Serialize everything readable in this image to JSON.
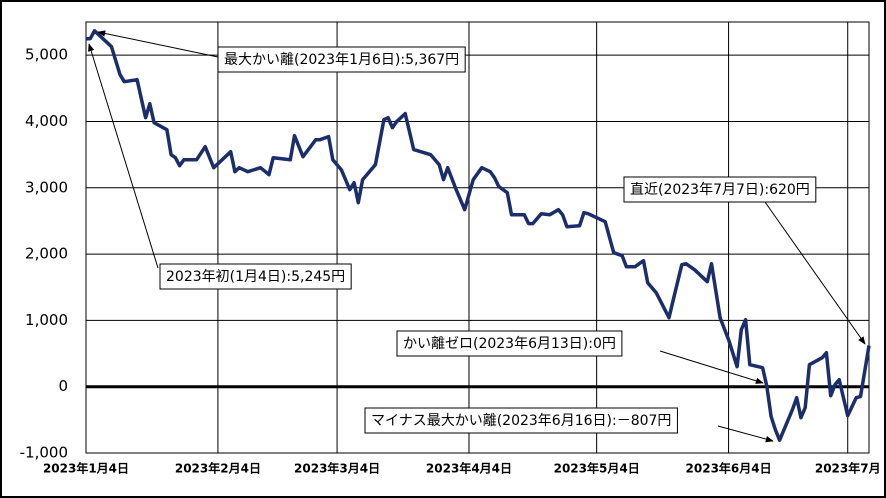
{
  "chart_data": {
    "type": "line",
    "color": "#1b2d6b",
    "grid": true,
    "zero_line": true,
    "xlim": [
      "2023-01-04",
      "2023-07-07"
    ],
    "ylim": [
      -1000,
      5500
    ],
    "xticks": [
      {
        "value": "2023-01-04",
        "label": "2023年1月4日"
      },
      {
        "value": "2023-02-04",
        "label": "2023年2月4日"
      },
      {
        "value": "2023-03-04",
        "label": "2023年3月4日"
      },
      {
        "value": "2023-04-04",
        "label": "2023年4月4日"
      },
      {
        "value": "2023-05-04",
        "label": "2023年5月4日"
      },
      {
        "value": "2023-06-04",
        "label": "2023年6月4日"
      },
      {
        "value": "2023-07-02",
        "label": "2023年7月"
      }
    ],
    "yticks": [
      {
        "value": -1000,
        "label": "-1,000"
      },
      0,
      {
        "value": 1000,
        "label": "1,000"
      },
      {
        "value": 2000,
        "label": "2,000"
      },
      {
        "value": 3000,
        "label": "3,000"
      },
      {
        "value": 4000,
        "label": "4,000"
      },
      {
        "value": 5000,
        "label": "5,000"
      }
    ],
    "x": [
      "2023-01-04",
      "2023-01-05",
      "2023-01-06",
      "2023-01-10",
      "2023-01-12",
      "2023-01-13",
      "2023-01-16",
      "2023-01-18",
      "2023-01-19",
      "2023-01-20",
      "2023-01-23",
      "2023-01-24",
      "2023-01-25",
      "2023-01-26",
      "2023-01-27",
      "2023-01-30",
      "2023-02-01",
      "2023-02-03",
      "2023-02-05",
      "2023-02-07",
      "2023-02-08",
      "2023-02-09",
      "2023-02-11",
      "2023-02-14",
      "2023-02-16",
      "2023-02-17",
      "2023-02-21",
      "2023-02-22",
      "2023-02-24",
      "2023-02-27",
      "2023-02-28",
      "2023-03-02",
      "2023-03-03",
      "2023-03-05",
      "2023-03-07",
      "2023-03-08",
      "2023-03-09",
      "2023-03-10",
      "2023-03-12",
      "2023-03-13",
      "2023-03-15",
      "2023-03-16",
      "2023-03-17",
      "2023-03-18",
      "2023-03-20",
      "2023-03-22",
      "2023-03-26",
      "2023-03-28",
      "2023-03-29",
      "2023-03-30",
      "2023-04-01",
      "2023-04-03",
      "2023-04-05",
      "2023-04-07",
      "2023-04-09",
      "2023-04-10",
      "2023-04-11",
      "2023-04-13",
      "2023-04-14",
      "2023-04-17",
      "2023-04-18",
      "2023-04-19",
      "2023-04-21",
      "2023-04-23",
      "2023-04-25",
      "2023-04-26",
      "2023-04-27",
      "2023-04-30",
      "2023-05-01",
      "2023-05-02",
      "2023-05-06",
      "2023-05-08",
      "2023-05-10",
      "2023-05-11",
      "2023-05-13",
      "2023-05-15",
      "2023-05-16",
      "2023-05-18",
      "2023-05-21",
      "2023-05-22",
      "2023-05-24",
      "2023-05-25",
      "2023-05-27",
      "2023-05-29",
      "2023-05-30",
      "2023-05-31",
      "2023-06-02",
      "2023-06-04",
      "2023-06-06",
      "2023-06-07",
      "2023-06-08",
      "2023-06-09",
      "2023-06-12",
      "2023-06-13",
      "2023-06-14",
      "2023-06-15",
      "2023-06-16",
      "2023-06-19",
      "2023-06-20",
      "2023-06-21",
      "2023-06-22",
      "2023-06-23",
      "2023-06-26",
      "2023-06-27",
      "2023-06-28",
      "2023-06-29",
      "2023-06-30",
      "2023-07-02",
      "2023-07-04",
      "2023-07-05",
      "2023-07-07"
    ],
    "values": [
      5245,
      5250,
      5367,
      5128,
      4706,
      4600,
      4630,
      4057,
      4268,
      3982,
      3876,
      3499,
      3454,
      3333,
      3424,
      3424,
      3620,
      3303,
      3424,
      3544,
      3243,
      3303,
      3243,
      3303,
      3198,
      3454,
      3424,
      3786,
      3469,
      3725,
      3725,
      3771,
      3424,
      3273,
      2971,
      3077,
      2775,
      3122,
      3273,
      3348,
      4027,
      4057,
      3906,
      3997,
      4118,
      3575,
      3499,
      3348,
      3122,
      3303,
      2971,
      2670,
      3122,
      3303,
      3243,
      3152,
      3017,
      2926,
      2594,
      2594,
      2459,
      2459,
      2609,
      2594,
      2670,
      2594,
      2413,
      2428,
      2624,
      2609,
      2489,
      2021,
      1976,
      1810,
      1810,
      1900,
      1569,
      1418,
      1041,
      1312,
      1840,
      1855,
      1765,
      1644,
      1584,
      1855,
      1041,
      709,
      302,
      860,
      1011,
      332,
      287,
      0,
      -450,
      -650,
      -807,
      -347,
      -166,
      -468,
      -317,
      332,
      437,
      513,
      -136,
      30,
      106,
      -437,
      -166,
      -150,
      620
    ],
    "annotations": [
      {
        "text": "最大かい離(2023年1月6日):5,367円"
      },
      {
        "text": "2023年初(1月4日):5,245円"
      },
      {
        "text": "直近(2023年7月7日):620円"
      },
      {
        "text": "かい離ゼロ(2023年6月13日):0円"
      },
      {
        "text": "マイナス最大かい離(2023年6月16日):－807円"
      }
    ]
  }
}
